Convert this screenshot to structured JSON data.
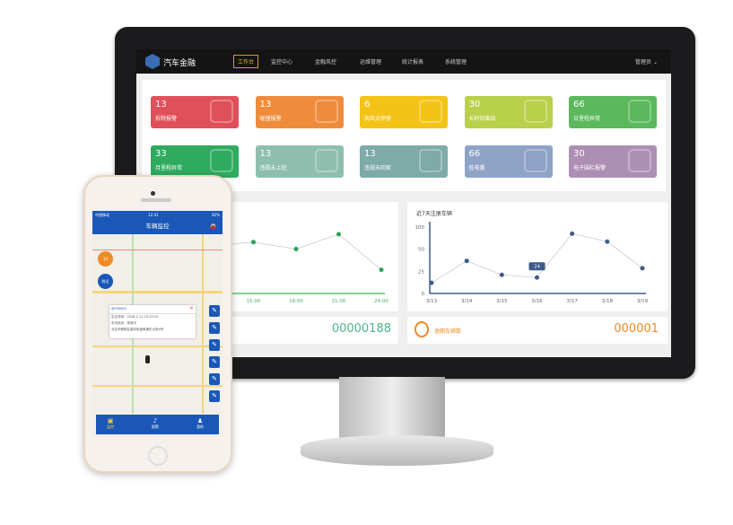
{
  "header": {
    "brand": "汽车金融",
    "nav": [
      "工作台",
      "监控中心",
      "金融风控",
      "运维管理",
      "统计报表",
      "系统管理"
    ],
    "active": "工作台",
    "user": "管理员"
  },
  "cards": [
    {
      "value": "13",
      "label": "拆除报警",
      "color": "#e0505a",
      "icon": "tools-icon"
    },
    {
      "value": "13",
      "label": "碰撞报警",
      "color": "#ef8c3c",
      "icon": "car-crash-icon"
    },
    {
      "value": "6",
      "label": "风险点停留",
      "color": "#f3c417",
      "icon": "map-pin-icon"
    },
    {
      "value": "30",
      "label": "长时间离线",
      "color": "#b9d04a",
      "icon": "link-icon"
    },
    {
      "value": "66",
      "label": "日里程异常",
      "color": "#5bb85d",
      "icon": "gauge-icon"
    },
    {
      "value": "33",
      "label": "月里程异常",
      "color": "#2fab5f",
      "icon": "speedometer-icon"
    },
    {
      "value": "13",
      "label": "违规未上班",
      "color": "#8ebfae",
      "icon": "briefcase-icon"
    },
    {
      "value": "13",
      "label": "违规未回家",
      "color": "#7eaaa8",
      "icon": "home-icon"
    },
    {
      "value": "66",
      "label": "低电量",
      "color": "#8fa3c7",
      "icon": "battery-icon"
    },
    {
      "value": "30",
      "label": "电子围栏报警",
      "color": "#ad8fb5",
      "icon": "map-fence-icon"
    }
  ],
  "chart_data": [
    {
      "type": "line",
      "title": "",
      "x": [
        "6:00",
        "9:00",
        "12:00",
        "15:00",
        "18:00",
        "21:00",
        "24:00"
      ],
      "x_ticks": [
        "9:00",
        "12:00",
        "15:00",
        "18:00",
        "21:00",
        "24:00"
      ],
      "values": [
        15,
        24,
        48,
        52,
        45,
        60,
        24
      ],
      "tooltip": "24",
      "ylim": [
        0,
        70
      ],
      "color": "#2fa05a"
    },
    {
      "type": "line",
      "title": "近7天注册车辆",
      "x": [
        "3/13",
        "3/14",
        "3/15",
        "3/16",
        "3/17",
        "3/18",
        "3/19"
      ],
      "values": [
        16,
        49,
        28,
        24,
        90,
        78,
        38
      ],
      "tooltip": "24",
      "y_ticks": [
        "0",
        "25",
        "50",
        "100"
      ],
      "ylim": [
        0,
        100
      ],
      "color": "#3d5a8a"
    }
  ],
  "stats": [
    {
      "label": "",
      "value": "00000188",
      "color": "#4fb58a"
    },
    {
      "label": "逾期车辆数",
      "value": "000001",
      "color": "#f08a24"
    }
  ],
  "phone": {
    "title": "车辆监控",
    "status_carrier": "中国移动",
    "status_time": "12:41",
    "status_battery": "92%",
    "circle_orange": "10",
    "circle_blue": "附近",
    "popup_title": "京P00000",
    "popup_lines": [
      "定位时间：2018-2-12 10:25:25",
      "车况状态：停驶中",
      "北京市朝阳区望京街道阜通东大街6号"
    ],
    "tabs": [
      "监控",
      "报警",
      "我的"
    ],
    "side_buttons": [
      "轨迹",
      "围栏",
      "追踪",
      "定位",
      "录音",
      "设置"
    ]
  }
}
